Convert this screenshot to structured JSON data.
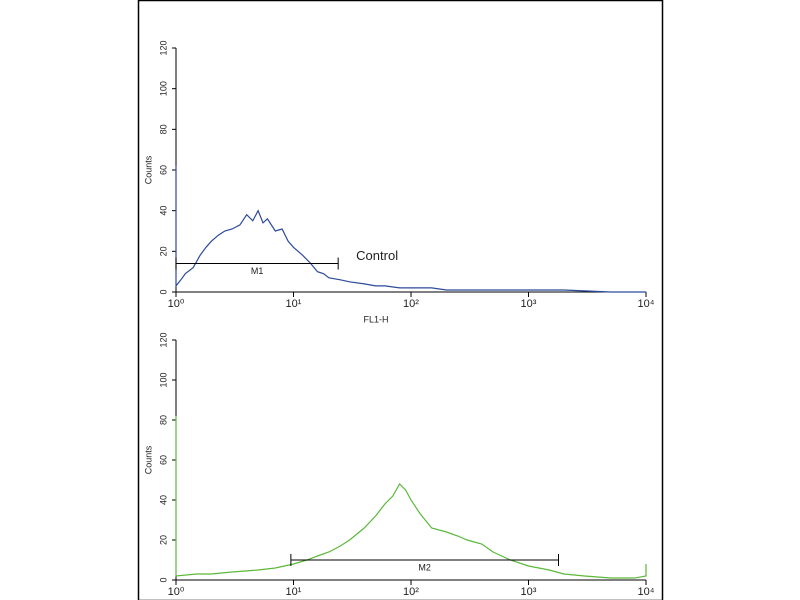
{
  "chart_data": [
    {
      "type": "line",
      "ylabel": "Counts",
      "xlabel": "FL1-H",
      "xscale": "log",
      "xlim": [
        1,
        10000
      ],
      "ylim": [
        0,
        120
      ],
      "xticks": [
        {
          "value": 1,
          "label": "10⁰"
        },
        {
          "value": 10,
          "label": "10¹"
        },
        {
          "value": 100,
          "label": "10²"
        },
        {
          "value": 1000,
          "label": "10³"
        },
        {
          "value": 10000,
          "label": "10⁴"
        }
      ],
      "yticks": [
        0,
        20,
        40,
        60,
        80,
        100,
        120
      ],
      "series": [
        {
          "color": "#2b4a9b",
          "x": [
            1,
            1,
            1.1,
            1.2,
            1.4,
            1.6,
            1.8,
            2,
            2.3,
            2.6,
            3,
            3.5,
            4,
            4.5,
            5,
            5.5,
            6,
            7,
            8,
            9,
            10,
            12,
            14,
            16,
            18,
            20,
            25,
            30,
            40,
            50,
            60,
            80,
            100,
            150,
            200,
            300,
            500,
            700,
            1000,
            2000,
            5000,
            10000
          ],
          "values": [
            62,
            3,
            6,
            9,
            12,
            18,
            22,
            25,
            28,
            30,
            31,
            33,
            38,
            35,
            40,
            34,
            36,
            30,
            31,
            25,
            22,
            18,
            14,
            10,
            9,
            7,
            6,
            5,
            4,
            3,
            3,
            2,
            2,
            2,
            1,
            1,
            1,
            1,
            1,
            1,
            0,
            0
          ]
        }
      ],
      "markers": [
        {
          "label": "M1",
          "start": 1,
          "end": 24,
          "y": 14
        }
      ],
      "annotation": "Control"
    },
    {
      "type": "line",
      "ylabel": "Counts",
      "xscale": "log",
      "xlim": [
        1,
        10000
      ],
      "ylim": [
        0,
        120
      ],
      "xticks": [
        {
          "value": 1,
          "label": "10⁰"
        },
        {
          "value": 10,
          "label": "10¹"
        },
        {
          "value": 100,
          "label": "10²"
        },
        {
          "value": 1000,
          "label": "10³"
        },
        {
          "value": 10000,
          "label": "10⁴"
        }
      ],
      "yticks": [
        0,
        20,
        40,
        60,
        80,
        100,
        120
      ],
      "series": [
        {
          "color": "#5cb83a",
          "x": [
            1,
            1,
            1.5,
            2,
            3,
            5,
            7,
            10,
            13,
            16,
            20,
            25,
            30,
            40,
            50,
            60,
            70,
            80,
            90,
            100,
            120,
            150,
            200,
            250,
            300,
            400,
            500,
            700,
            1000,
            1500,
            2000,
            3000,
            5000,
            8000,
            10000,
            10000
          ],
          "values": [
            82,
            2,
            3,
            3,
            4,
            5,
            6,
            8,
            10,
            12,
            14,
            17,
            20,
            26,
            32,
            38,
            42,
            48,
            45,
            40,
            33,
            26,
            24,
            22,
            20,
            18,
            14,
            10,
            7,
            5,
            3,
            2,
            1,
            1,
            2,
            8
          ]
        }
      ],
      "markers": [
        {
          "label": "M2",
          "start": 9.5,
          "end": 1800,
          "y": 10
        }
      ]
    }
  ]
}
